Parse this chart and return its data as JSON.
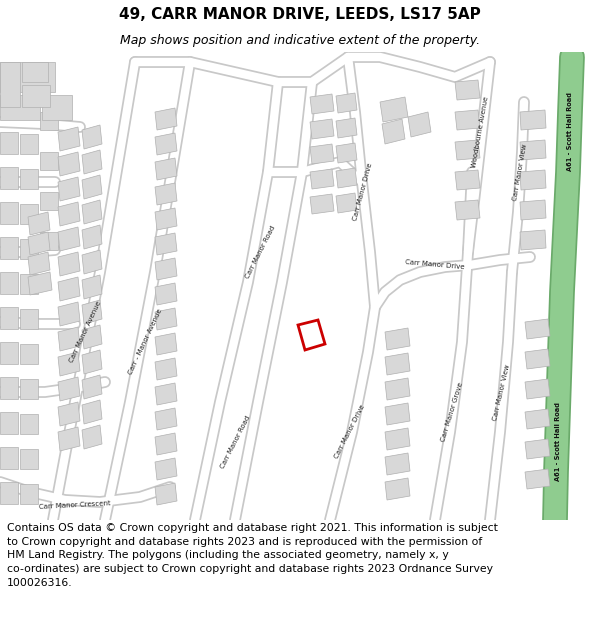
{
  "title": "49, CARR MANOR DRIVE, LEEDS, LS17 5AP",
  "subtitle": "Map shows position and indicative extent of the property.",
  "footer_line1": "Contains OS data © Crown copyright and database right 2021. This information is subject",
  "footer_line2": "to Crown copyright and database rights 2023 and is reproduced with the permission of",
  "footer_line3": "HM Land Registry. The polygons (including the associated geometry, namely x, y",
  "footer_line4": "co-ordinates) are subject to Crown copyright and database rights 2023 Ordnance Survey",
  "footer_line5": "100026316.",
  "map_bg": "#f0eeea",
  "road_fill": "#ffffff",
  "road_edge": "#c8c8c8",
  "green_fill": "#8fcc8f",
  "green_edge": "#6aaa6a",
  "building_fill": "#d8d8d8",
  "building_edge": "#b0b0b0",
  "highlight_edge": "#cc0000",
  "title_fs": 11,
  "sub_fs": 9,
  "foot_fs": 7.8,
  "label_fs": 5.0
}
